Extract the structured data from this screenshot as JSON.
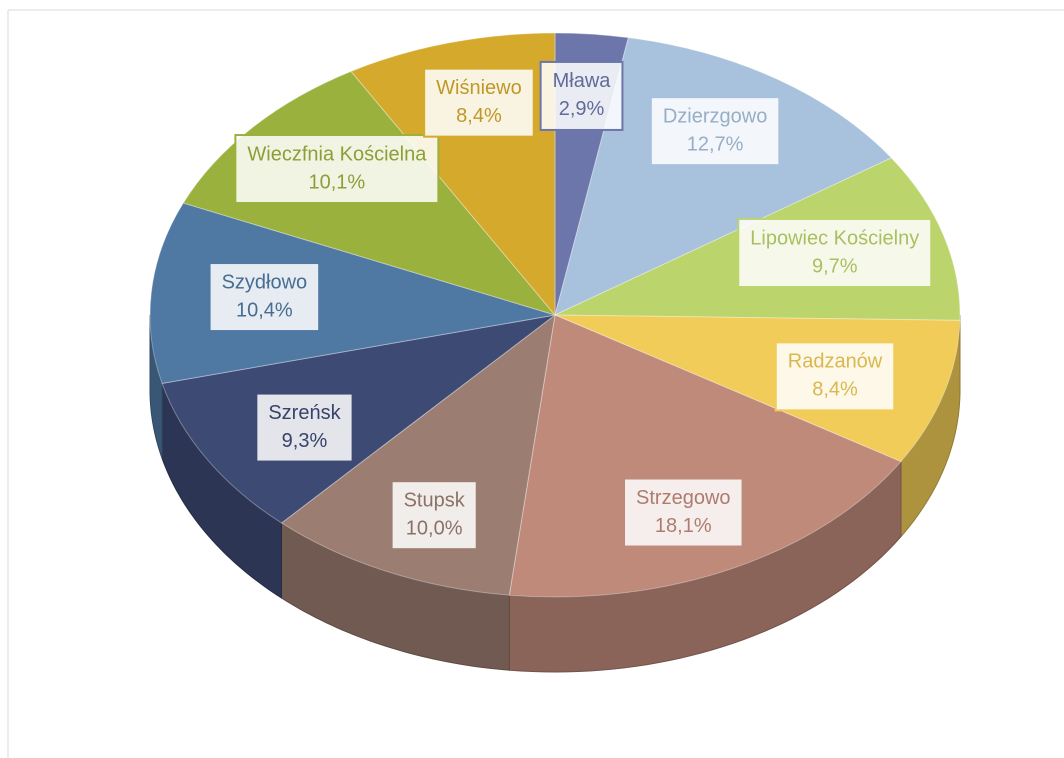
{
  "chart_data": {
    "type": "pie",
    "categories": [
      "Mława",
      "Dzierzgowo",
      "Lipowiec Kościelny",
      "Radzanów",
      "Strzegowo",
      "Stupsk",
      "Szreńsk",
      "Szydłowo",
      "Wieczfnia Kościelna",
      "Wiśniewo"
    ],
    "values": [
      2.9,
      12.7,
      9.7,
      8.4,
      18.1,
      10.0,
      9.3,
      10.4,
      10.1,
      8.4
    ],
    "value_labels": [
      "2,9%",
      "12,7%",
      "9,7%",
      "8,4%",
      "18,1%",
      "10,0%",
      "9,3%",
      "10,4%",
      "10,1%",
      "8,4%"
    ],
    "colors": [
      "#6d76aa",
      "#a8c1dc",
      "#bcd46c",
      "#f1cc58",
      "#c08a7b",
      "#9c7d72",
      "#3d4a74",
      "#4f79a3",
      "#9bb13d",
      "#d5a92b"
    ]
  }
}
